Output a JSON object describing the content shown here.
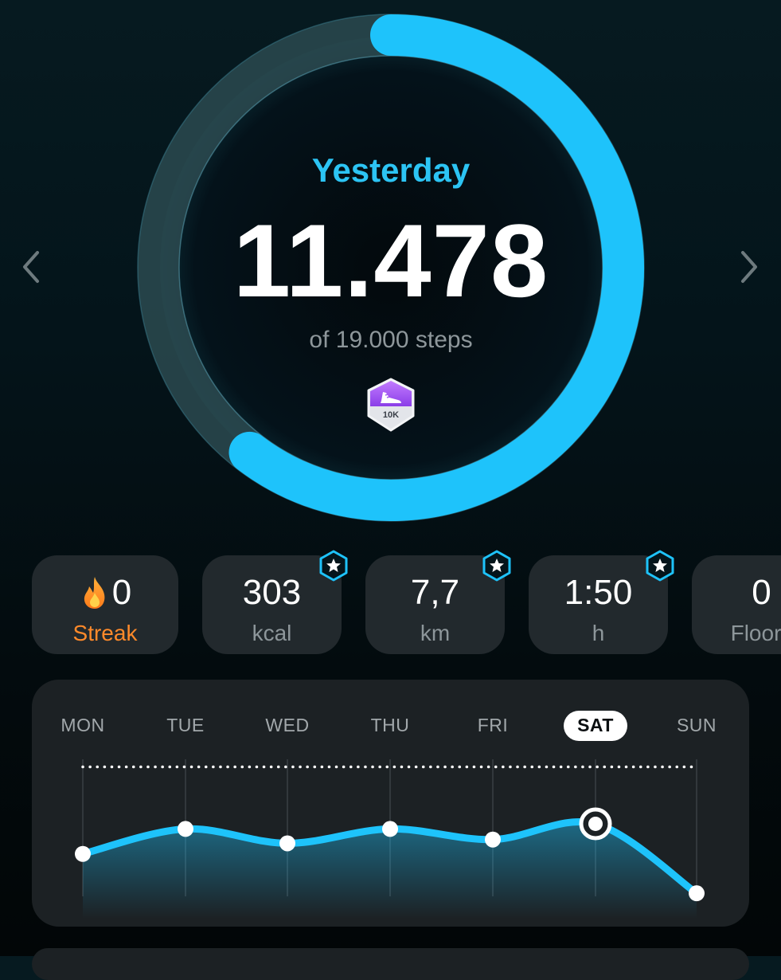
{
  "summary": {
    "period": "Yesterday",
    "steps": "11.478",
    "goal_text": "of 19.000 steps",
    "progress": 0.604,
    "badge_label": "10K",
    "badge_icon": "sneaker-icon"
  },
  "colors": {
    "accent": "#1ec3fb",
    "streak": "#ff8a2a",
    "track": "#2b4a50",
    "badge": "#a35cf0"
  },
  "stats": [
    {
      "id": "streak",
      "value": "0",
      "label": "Streak",
      "icon": "flame-icon",
      "starred": false
    },
    {
      "id": "calories",
      "value": "303",
      "label": "kcal",
      "starred": true
    },
    {
      "id": "distance",
      "value": "7,7",
      "label": "km",
      "starred": true
    },
    {
      "id": "duration",
      "value": "1:50",
      "label": "h",
      "starred": true
    },
    {
      "id": "floors",
      "value": "0",
      "label": "Floors",
      "starred": false
    }
  ],
  "week": {
    "days": [
      "MON",
      "TUE",
      "WED",
      "THU",
      "FRI",
      "SAT",
      "SUN"
    ],
    "selected": "SAT"
  },
  "chart_data": {
    "type": "line",
    "categories": [
      "MON",
      "TUE",
      "WED",
      "THU",
      "FRI",
      "SAT",
      "SUN"
    ],
    "series": [
      {
        "values": [
          7500,
          10800,
          8900,
          10800,
          9400,
          11478,
          2300
        ]
      }
    ],
    "goal": 19000,
    "ylim": [
      0,
      20000
    ],
    "grid": true
  }
}
